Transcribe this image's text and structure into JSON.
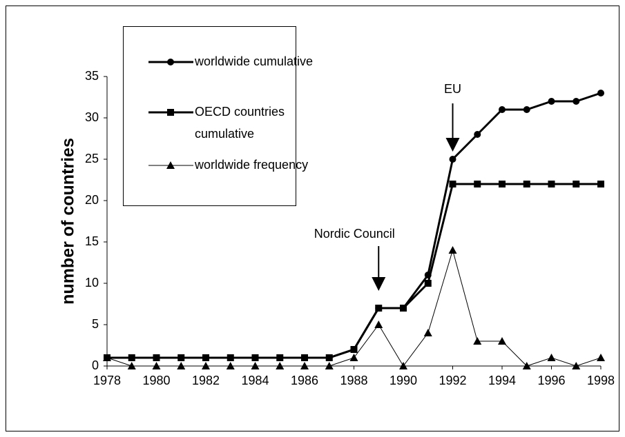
{
  "chart_data": {
    "type": "line",
    "y_label": "number of countries",
    "x": [
      1978,
      1979,
      1980,
      1981,
      1982,
      1983,
      1984,
      1985,
      1986,
      1987,
      1988,
      1989,
      1990,
      1991,
      1992,
      1993,
      1994,
      1995,
      1996,
      1997,
      1998
    ],
    "series": [
      {
        "name": "worldwide cumulative",
        "color": "#000000",
        "marker": "circle",
        "width": 3,
        "values": [
          1,
          1,
          1,
          1,
          1,
          1,
          1,
          1,
          1,
          1,
          2,
          7,
          7,
          11,
          25,
          28,
          31,
          31,
          32,
          32,
          33
        ]
      },
      {
        "name": "OECD countries cumulative",
        "color": "#000000",
        "marker": "square",
        "width": 3,
        "values": [
          1,
          1,
          1,
          1,
          1,
          1,
          1,
          1,
          1,
          1,
          2,
          7,
          7,
          10,
          22,
          22,
          22,
          22,
          22,
          22,
          22
        ]
      },
      {
        "name": "worldwide frequency",
        "color": "#000000",
        "marker": "triangle",
        "width": 1,
        "values": [
          1,
          0,
          0,
          0,
          0,
          0,
          0,
          0,
          0,
          0,
          1,
          5,
          0,
          4,
          14,
          3,
          3,
          0,
          1,
          0,
          1
        ]
      }
    ],
    "annotations": [
      {
        "text": "Nordic Council",
        "x": 1989
      },
      {
        "text": "EU",
        "x": 1992
      }
    ],
    "xlim": [
      1978,
      1998
    ],
    "xticks": [
      1978,
      1980,
      1982,
      1984,
      1986,
      1988,
      1990,
      1992,
      1994,
      1996,
      1998
    ],
    "ylim": [
      0,
      35
    ],
    "yticks": [
      0,
      5,
      10,
      15,
      20,
      25,
      30,
      35
    ],
    "legend": "top-left",
    "grid": false
  }
}
